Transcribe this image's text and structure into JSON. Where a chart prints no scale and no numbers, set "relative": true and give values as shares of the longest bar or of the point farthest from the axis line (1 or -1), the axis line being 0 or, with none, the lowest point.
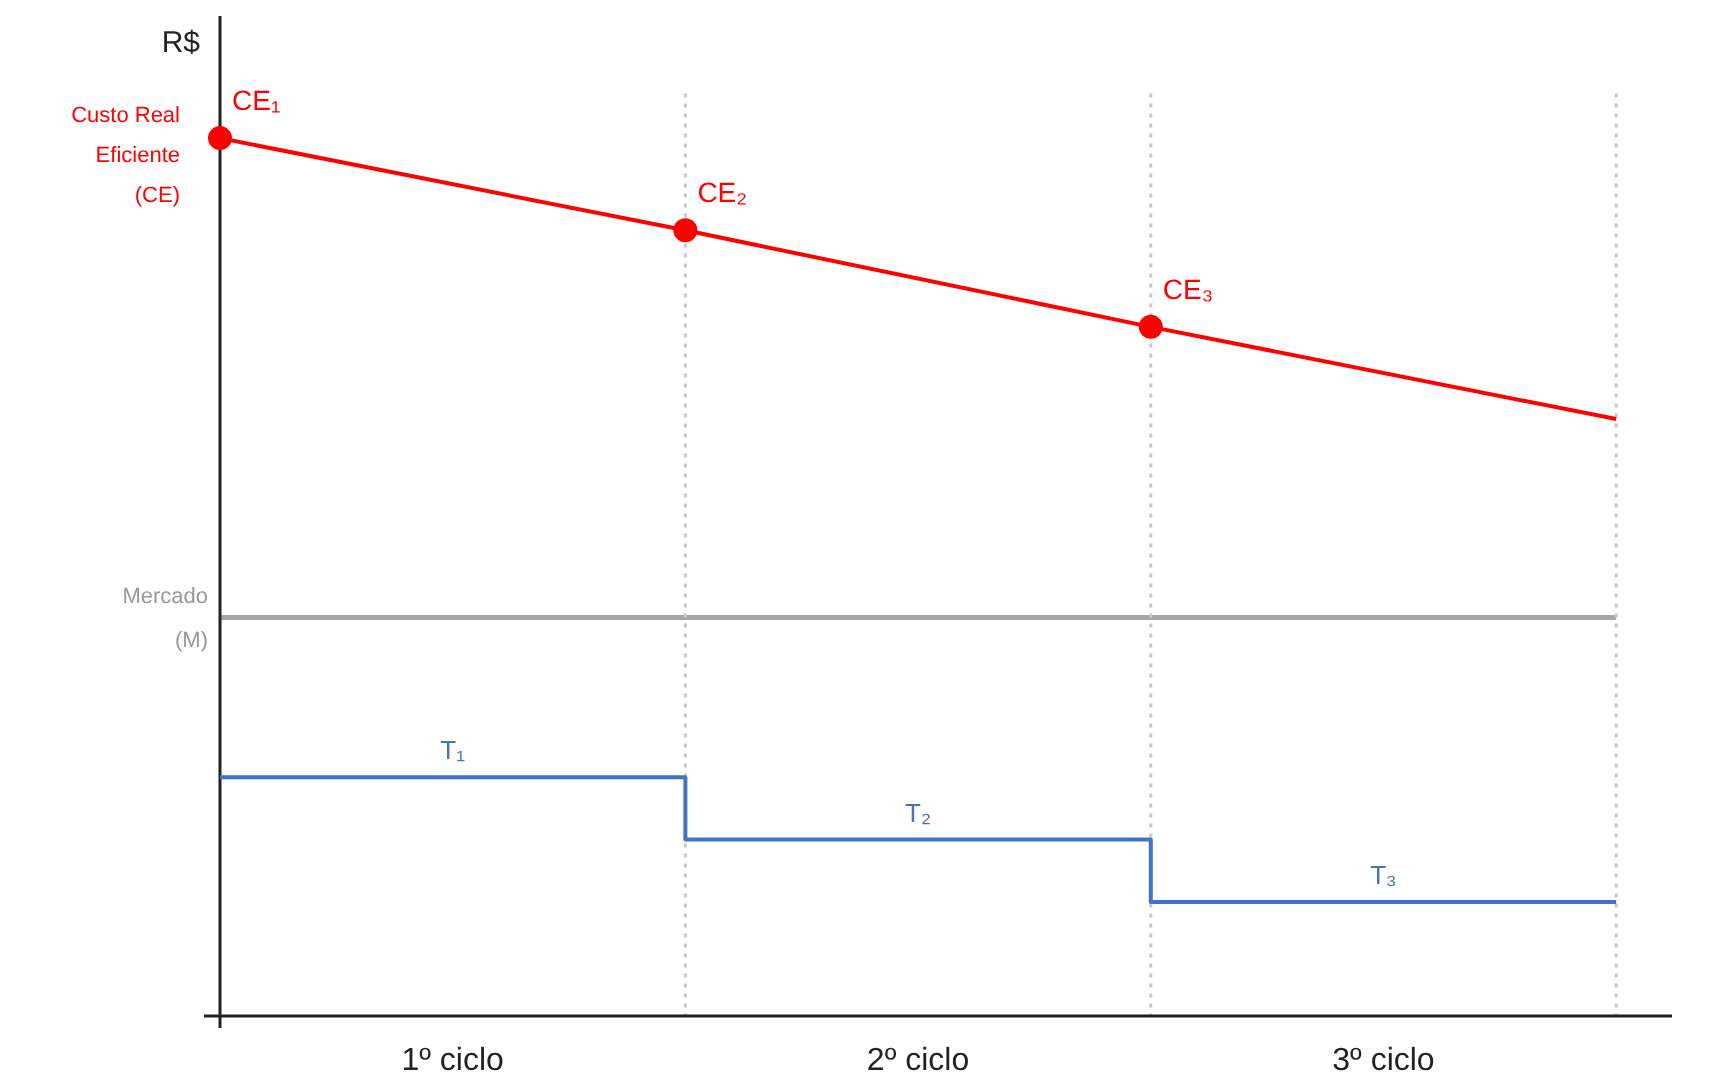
{
  "chart_data": {
    "type": "line",
    "relative": true,
    "ylabel": "R$",
    "xlim": [
      0,
      3.12
    ],
    "xticks": [
      {
        "value": 0.5,
        "label": "1º ciclo"
      },
      {
        "value": 1.5,
        "label": "2º ciclo"
      },
      {
        "value": 2.5,
        "label": "3º ciclo"
      }
    ],
    "series": [
      {
        "color": "#ff0000",
        "x": [
          0,
          1,
          2,
          3
        ],
        "values": [
          1,
          0.895,
          0.785,
          0.68
        ],
        "marker": "none"
      },
      {
        "type": "scatter",
        "color": "#ff0000",
        "x": [
          0,
          1,
          2
        ],
        "values": [
          1,
          0.895,
          0.785
        ],
        "marker": "circle"
      },
      {
        "type": "step",
        "color": "#4472c4",
        "x": [
          0,
          1,
          2,
          3
        ],
        "values": [
          0.272,
          0.201,
          0.13,
          0.13
        ],
        "marker": "none"
      }
    ],
    "ref_lines": [
      {
        "axis": "y",
        "value": 0.454,
        "label": "Mercado (M)",
        "color": "#a6a6a6",
        "line_style": "solid"
      },
      {
        "axis": "x",
        "value": 1,
        "label": null,
        "color": "#c8c8c8",
        "line_style": "dotted"
      },
      {
        "axis": "x",
        "value": 2,
        "label": null,
        "color": "#c8c8c8",
        "line_style": "dotted"
      },
      {
        "axis": "x",
        "value": 3,
        "label": null,
        "color": "#c8c8c8",
        "line_style": "dotted"
      }
    ],
    "annotations": [
      "Custo Real Eficiente (CE)",
      {
        "text": "CE₁",
        "x": 0,
        "y": 1
      },
      {
        "text": "CE₂",
        "x": 1,
        "y": 0.895
      },
      {
        "text": "CE₃",
        "x": 2,
        "y": 0.785
      },
      {
        "text": "T₁",
        "x": 0.5,
        "y": 0.272
      },
      {
        "text": "T₂",
        "x": 1.5,
        "y": 0.201
      },
      {
        "text": "T₃",
        "x": 2.5,
        "y": 0.13
      }
    ]
  }
}
